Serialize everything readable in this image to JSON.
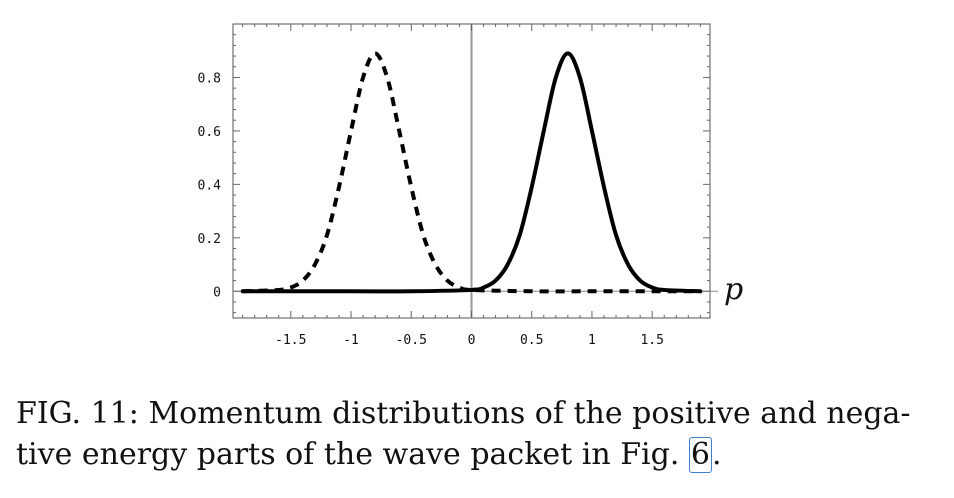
{
  "chart_data": {
    "type": "line",
    "title": "",
    "xlabel": "p",
    "ylabel": "",
    "xlim": [
      -1.98,
      1.98
    ],
    "ylim": [
      -0.1,
      1.0
    ],
    "x_ticks": [
      {
        "value": -1.5,
        "label": "-1.5"
      },
      {
        "value": -1,
        "label": "-1"
      },
      {
        "value": -0.5,
        "label": "-0.5"
      },
      {
        "value": 0,
        "label": "0"
      },
      {
        "value": 0.5,
        "label": "0.5"
      },
      {
        "value": 1,
        "label": "1"
      },
      {
        "value": 1.5,
        "label": "1.5"
      }
    ],
    "y_ticks": [
      {
        "value": 0,
        "label": "0"
      },
      {
        "value": 0.2,
        "label": "0.2"
      },
      {
        "value": 0.4,
        "label": "0.4"
      },
      {
        "value": 0.6,
        "label": "0.6"
      },
      {
        "value": 0.8,
        "label": "0.8"
      }
    ],
    "series": [
      {
        "style": "dashed",
        "x": [
          -1.9,
          -1.6,
          -1.5,
          -1.4,
          -1.3,
          -1.2,
          -1.1,
          -1.0,
          -0.9,
          -0.8,
          -0.7,
          -0.6,
          -0.5,
          -0.4,
          -0.3,
          -0.2,
          -0.1,
          0.0,
          0.5,
          1.0,
          1.5,
          1.9
        ],
        "y": [
          0.0,
          0.005,
          0.014,
          0.04,
          0.1,
          0.21,
          0.39,
          0.6,
          0.8,
          0.89,
          0.8,
          0.6,
          0.39,
          0.21,
          0.1,
          0.04,
          0.014,
          0.005,
          0.0,
          0.0,
          0.0,
          0.0
        ]
      },
      {
        "style": "solid",
        "x": [
          -1.9,
          -1.5,
          -1.0,
          -0.5,
          0.0,
          0.1,
          0.2,
          0.3,
          0.4,
          0.5,
          0.6,
          0.7,
          0.8,
          0.9,
          1.0,
          1.1,
          1.2,
          1.3,
          1.4,
          1.5,
          1.6,
          1.9
        ],
        "y": [
          0.0,
          0.0,
          0.0,
          0.0,
          0.005,
          0.014,
          0.04,
          0.1,
          0.21,
          0.39,
          0.6,
          0.8,
          0.89,
          0.8,
          0.6,
          0.39,
          0.21,
          0.1,
          0.04,
          0.014,
          0.005,
          0.0
        ]
      }
    ],
    "grid": false,
    "legend": "none"
  },
  "caption": {
    "line1": "FIG. 11:   Momentum distributions of the positive and nega-",
    "line2_before": "tive energy parts of the wave packet in Fig. ",
    "fig_ref": "6",
    "line2_after": "."
  }
}
